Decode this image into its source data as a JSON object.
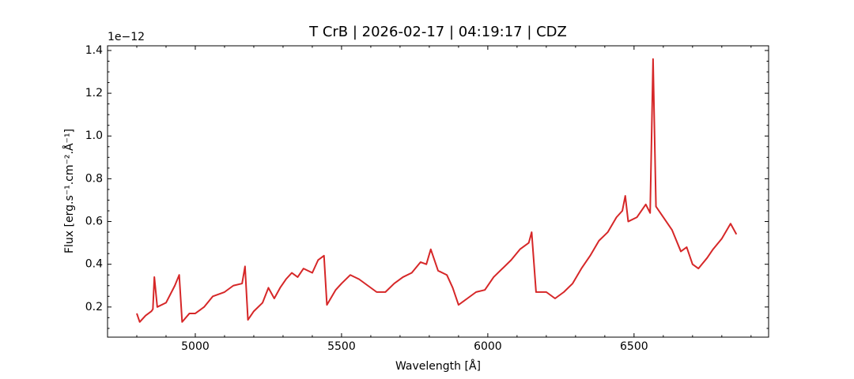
{
  "chart_data": {
    "type": "line",
    "title": "T CrB | 2026-02-17 | 04:19:17 | CDZ",
    "x_label": "Wavelength [Å]",
    "y_label": "Flux [erg.s⁻¹.cm⁻².Å⁻¹]",
    "y_offset_label": "1e−12",
    "color": "#d62728",
    "x": [
      4800,
      4810,
      4830,
      4850,
      4855,
      4860,
      4870,
      4900,
      4930,
      4945,
      4955,
      4980,
      5000,
      5030,
      5060,
      5100,
      5130,
      5160,
      5170,
      5180,
      5200,
      5230,
      5250,
      5270,
      5290,
      5310,
      5330,
      5350,
      5370,
      5400,
      5420,
      5440,
      5450,
      5480,
      5500,
      5530,
      5560,
      5590,
      5620,
      5650,
      5680,
      5710,
      5740,
      5770,
      5790,
      5805,
      5830,
      5860,
      5880,
      5900,
      5930,
      5960,
      5990,
      6020,
      6050,
      6080,
      6110,
      6140,
      6150,
      6165,
      6200,
      6230,
      6260,
      6290,
      6320,
      6350,
      6380,
      6410,
      6440,
      6460,
      6470,
      6480,
      6510,
      6540,
      6555,
      6565,
      6575,
      6600,
      6630,
      6660,
      6680,
      6700,
      6720,
      6750,
      6770,
      6800,
      6830,
      6850
    ],
    "values": [
      0.17,
      0.13,
      0.16,
      0.18,
      0.19,
      0.34,
      0.2,
      0.22,
      0.3,
      0.35,
      0.13,
      0.17,
      0.17,
      0.2,
      0.25,
      0.27,
      0.3,
      0.31,
      0.39,
      0.14,
      0.18,
      0.22,
      0.29,
      0.24,
      0.29,
      0.33,
      0.36,
      0.34,
      0.38,
      0.36,
      0.42,
      0.44,
      0.21,
      0.28,
      0.31,
      0.35,
      0.33,
      0.3,
      0.27,
      0.27,
      0.31,
      0.34,
      0.36,
      0.41,
      0.4,
      0.47,
      0.37,
      0.35,
      0.29,
      0.21,
      0.24,
      0.27,
      0.28,
      0.34,
      0.38,
      0.42,
      0.47,
      0.5,
      0.55,
      0.27,
      0.27,
      0.24,
      0.27,
      0.31,
      0.38,
      0.44,
      0.51,
      0.55,
      0.62,
      0.65,
      0.72,
      0.6,
      0.62,
      0.68,
      0.64,
      1.36,
      0.67,
      0.62,
      0.56,
      0.46,
      0.48,
      0.4,
      0.38,
      0.43,
      0.47,
      0.52,
      0.59,
      0.54
    ],
    "xlim": [
      4700,
      6960
    ],
    "ylim": [
      0.059,
      1.422
    ],
    "xticks": [
      5000,
      5500,
      6000,
      6500
    ],
    "yticks": [
      0.2,
      0.4,
      0.6,
      0.8,
      1.0,
      1.2,
      1.4
    ],
    "xminorticks": [
      4700,
      4800,
      4900,
      5100,
      5200,
      5300,
      5400,
      5600,
      5700,
      5800,
      5900,
      6100,
      6200,
      6300,
      6400,
      6600,
      6700,
      6800,
      6900
    ],
    "yminorticks": [
      0.1,
      0.15,
      0.25,
      0.3,
      0.35,
      0.45,
      0.5,
      0.55,
      0.65,
      0.7,
      0.75,
      0.85,
      0.9,
      0.95,
      1.05,
      1.1,
      1.15,
      1.25,
      1.3,
      1.35
    ],
    "grid": false
  }
}
